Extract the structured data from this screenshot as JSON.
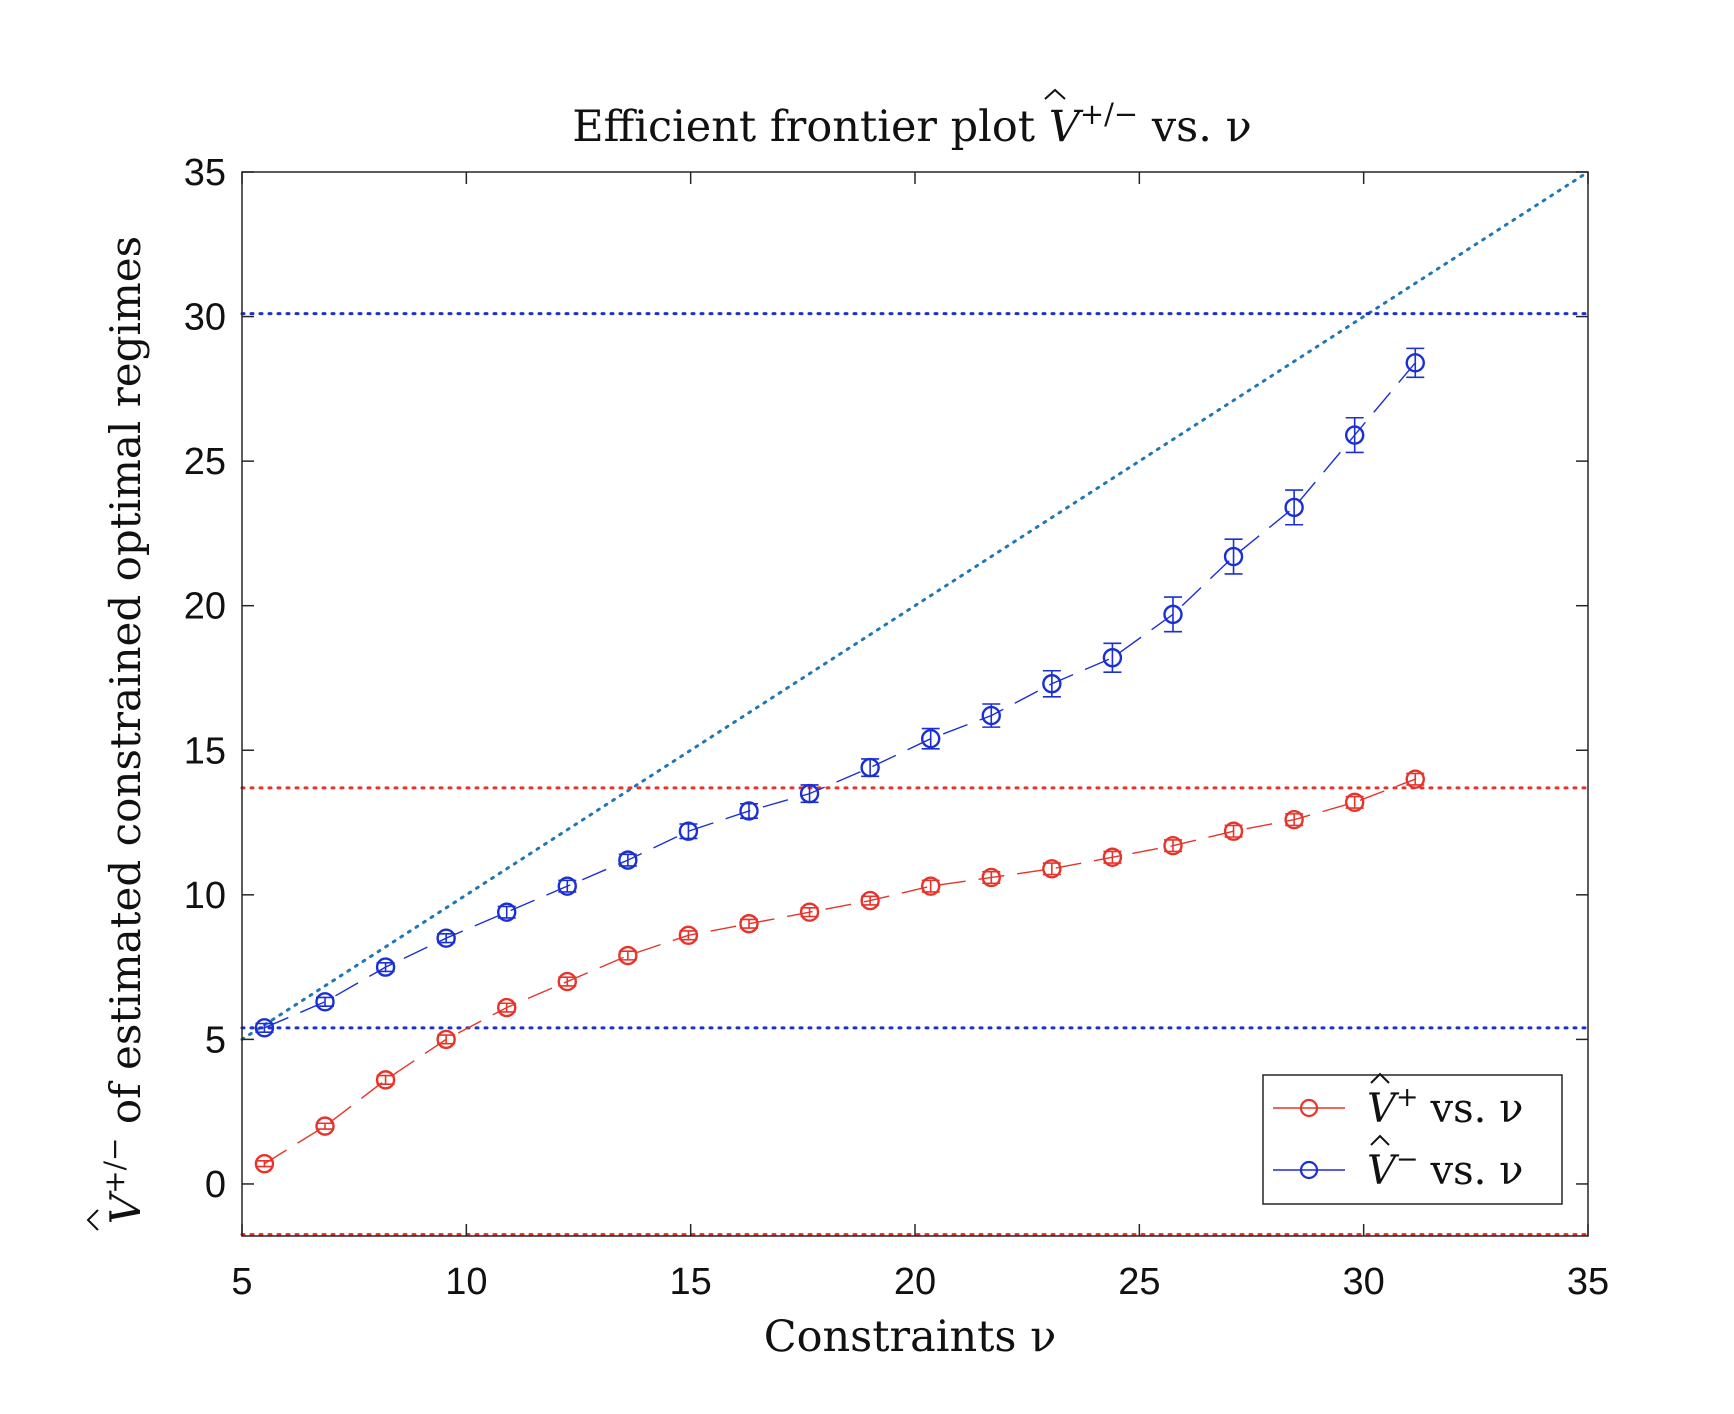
{
  "chart_data": {
    "type": "scatter",
    "title": {
      "prefix": "Efficient frontier plot ",
      "symbol": "V",
      "superscript": "+/−",
      "suffix": " vs. ν"
    },
    "xlabel": "Constraints ν",
    "ylabel": {
      "symbol": "V",
      "superscript": "+/−",
      "rest": " of estimated constrained optimal regimes"
    },
    "xlim": [
      5,
      35
    ],
    "ylim": [
      -1.8,
      35
    ],
    "xticks": [
      "5",
      "10",
      "15",
      "20",
      "25",
      "30",
      "35"
    ],
    "yticks": [
      "0",
      "5",
      "10",
      "15",
      "20",
      "25",
      "30",
      "35"
    ],
    "grid": false,
    "legend_placement": "bottom-right",
    "series": [
      {
        "name": "vs. ν",
        "legend_symbol": "V",
        "legend_superscript": "+",
        "color": "#e8332a",
        "x": [
          5.5,
          6.85,
          8.2,
          9.55,
          10.9,
          12.25,
          13.6,
          14.95,
          16.3,
          17.65,
          19.0,
          20.35,
          21.7,
          23.05,
          24.4,
          25.75,
          27.1,
          28.45,
          29.8,
          31.15
        ],
        "y": [
          0.7,
          2.0,
          3.6,
          5.0,
          6.1,
          7.0,
          7.9,
          8.6,
          9.0,
          9.4,
          9.8,
          10.3,
          10.6,
          10.9,
          11.3,
          11.7,
          12.2,
          12.6,
          13.2,
          14.0
        ],
        "err": [
          0.1,
          0.1,
          0.15,
          0.15,
          0.15,
          0.15,
          0.15,
          0.15,
          0.15,
          0.15,
          0.15,
          0.2,
          0.2,
          0.2,
          0.2,
          0.2,
          0.2,
          0.2,
          0.2,
          0.2
        ]
      },
      {
        "name": "vs. ν",
        "legend_symbol": "V",
        "legend_superscript": "−",
        "color": "#1b2fd6",
        "x": [
          5.5,
          6.85,
          8.2,
          9.55,
          10.9,
          12.25,
          13.6,
          14.95,
          16.3,
          17.65,
          19.0,
          20.35,
          21.7,
          23.05,
          24.4,
          25.75,
          27.1,
          28.45,
          29.8,
          31.15
        ],
        "y": [
          5.4,
          6.3,
          7.5,
          8.5,
          9.4,
          10.3,
          11.2,
          12.2,
          12.9,
          13.5,
          14.4,
          15.4,
          16.2,
          17.3,
          18.2,
          19.7,
          21.7,
          23.4,
          25.9,
          28.4
        ],
        "err": [
          0.15,
          0.15,
          0.15,
          0.15,
          0.2,
          0.2,
          0.2,
          0.25,
          0.25,
          0.3,
          0.3,
          0.35,
          0.4,
          0.45,
          0.5,
          0.6,
          0.6,
          0.6,
          0.6,
          0.5
        ]
      }
    ],
    "reference_lines": {
      "diagonal": {
        "x": [
          5,
          35
        ],
        "y": [
          5,
          35
        ],
        "color": "#1f77b4"
      },
      "blue_horizontal": [
        30.1,
        5.4
      ],
      "red_horizontal": [
        13.7,
        -1.75
      ],
      "blue_color": "#1b2fd6",
      "red_color": "#e8332a"
    }
  }
}
